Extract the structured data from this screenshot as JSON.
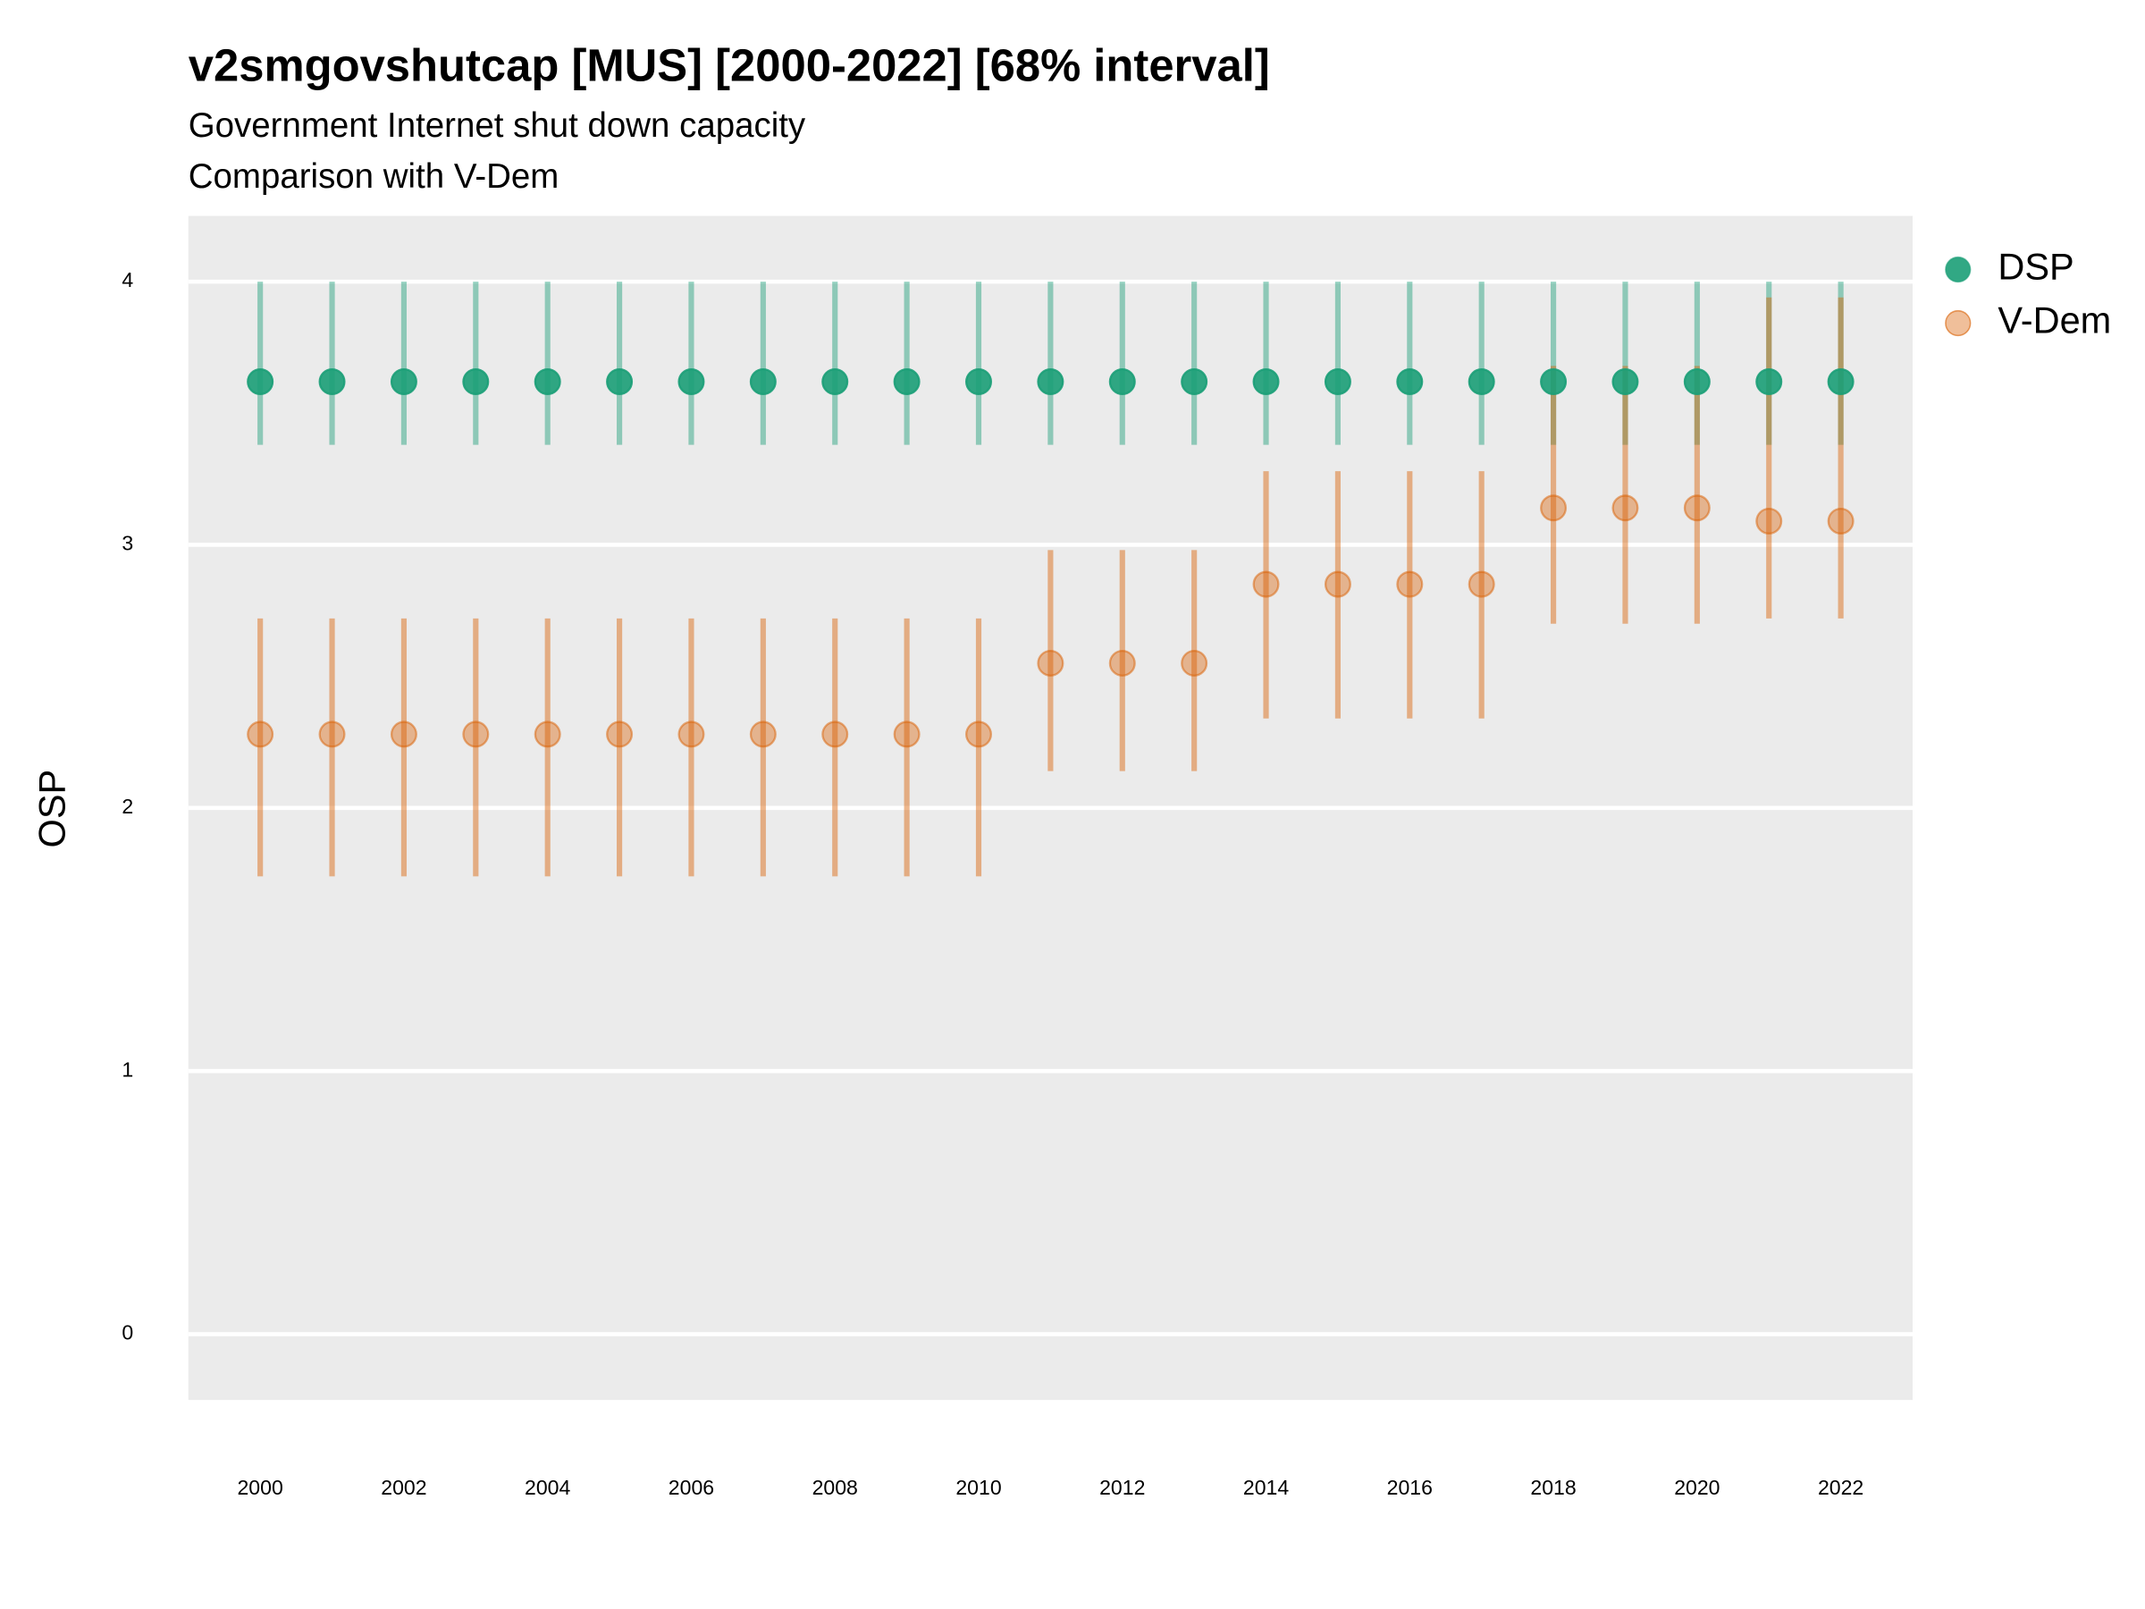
{
  "chart_data": {
    "type": "pointrange",
    "title": "v2smgovshutcap [MUS] [2000-2022] [68% interval]",
    "subtitle": "Government Internet shut down capacity",
    "caption": "Comparison with V-Dem",
    "y_label": "OSP",
    "x": [
      2000,
      2001,
      2002,
      2003,
      2004,
      2005,
      2006,
      2007,
      2008,
      2009,
      2010,
      2011,
      2012,
      2013,
      2014,
      2015,
      2016,
      2017,
      2018,
      2019,
      2020,
      2021,
      2022
    ],
    "series": [
      {
        "name": "DSP",
        "color": "#1b9e77",
        "values": [
          3.62,
          3.62,
          3.62,
          3.62,
          3.62,
          3.62,
          3.62,
          3.62,
          3.62,
          3.62,
          3.62,
          3.62,
          3.62,
          3.62,
          3.62,
          3.62,
          3.62,
          3.62,
          3.62,
          3.62,
          3.62,
          3.62,
          3.62
        ],
        "lower": [
          3.38,
          3.38,
          3.38,
          3.38,
          3.38,
          3.38,
          3.38,
          3.38,
          3.38,
          3.38,
          3.38,
          3.38,
          3.38,
          3.38,
          3.38,
          3.38,
          3.38,
          3.38,
          3.38,
          3.38,
          3.38,
          3.38,
          3.38
        ],
        "upper": [
          4.0,
          4.0,
          4.0,
          4.0,
          4.0,
          4.0,
          4.0,
          4.0,
          4.0,
          4.0,
          4.0,
          4.0,
          4.0,
          4.0,
          4.0,
          4.0,
          4.0,
          4.0,
          4.0,
          4.0,
          4.0,
          4.0,
          4.0
        ]
      },
      {
        "name": "V-Dem",
        "color": "#d95f02",
        "values": [
          2.28,
          2.28,
          2.28,
          2.28,
          2.28,
          2.28,
          2.28,
          2.28,
          2.28,
          2.28,
          2.28,
          2.55,
          2.55,
          2.55,
          2.85,
          2.85,
          2.85,
          2.85,
          3.14,
          3.14,
          3.14,
          3.09,
          3.09
        ],
        "lower": [
          1.74,
          1.74,
          1.74,
          1.74,
          1.74,
          1.74,
          1.74,
          1.74,
          1.74,
          1.74,
          1.74,
          2.14,
          2.14,
          2.14,
          2.34,
          2.34,
          2.34,
          2.34,
          2.7,
          2.7,
          2.7,
          2.72,
          2.72
        ],
        "upper": [
          2.72,
          2.72,
          2.72,
          2.72,
          2.72,
          2.72,
          2.72,
          2.72,
          2.72,
          2.72,
          2.72,
          2.98,
          2.98,
          2.98,
          3.28,
          3.28,
          3.28,
          3.28,
          3.68,
          3.68,
          3.68,
          3.94,
          3.94
        ]
      }
    ],
    "xlim": [
      1999,
      2023
    ],
    "xticks": [
      2000,
      2002,
      2004,
      2006,
      2008,
      2010,
      2012,
      2014,
      2016,
      2018,
      2020,
      2022
    ],
    "ylim": [
      -0.25,
      4.25
    ],
    "yticks": [
      0,
      1,
      2,
      3,
      4
    ],
    "grid": true,
    "legend": "right"
  }
}
